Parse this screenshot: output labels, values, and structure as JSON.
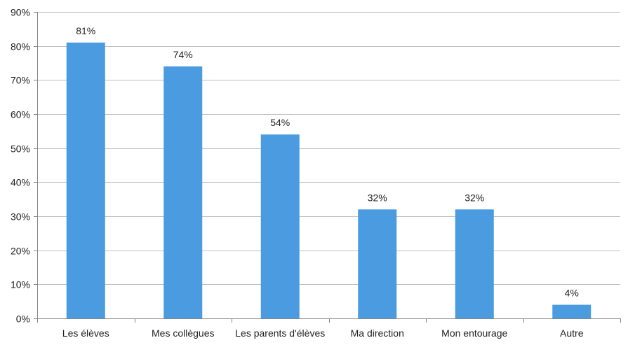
{
  "chart_data": {
    "type": "bar",
    "categories": [
      "Les élèves",
      "Mes collègues",
      "Les parents d'élèves",
      "Ma direction",
      "Mon entourage",
      "Autre"
    ],
    "values": [
      81,
      74,
      54,
      32,
      32,
      4
    ],
    "data_labels": [
      "81%",
      "74%",
      "54%",
      "32%",
      "32%",
      "4%"
    ],
    "ylim": [
      0,
      90
    ],
    "yticks": [
      0,
      10,
      20,
      30,
      40,
      50,
      60,
      70,
      80,
      90
    ],
    "ytick_labels": [
      "0%",
      "10%",
      "20%",
      "30%",
      "40%",
      "50%",
      "60%",
      "70%",
      "80%",
      "90%"
    ],
    "grid": true,
    "bar_color": "#4A9BE0",
    "grid_color": "#BFBFBF",
    "axis_color": "#868686"
  }
}
